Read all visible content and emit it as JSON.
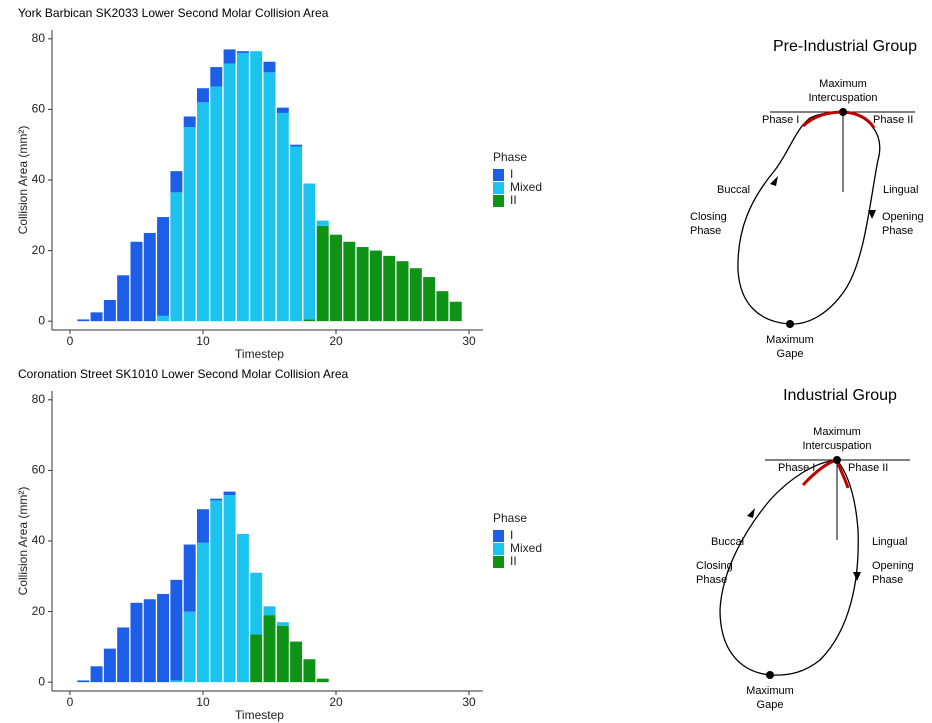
{
  "chart_data": [
    {
      "type": "bar",
      "stacked": true,
      "title": "York Barbican SK2033 Lower Second Molar Collision Area",
      "x_label": "Timestep",
      "y_label": "Collision Area (mm²)",
      "legend_title": "Phase",
      "legend": "right",
      "x": [
        1,
        2,
        3,
        4,
        5,
        6,
        7,
        8,
        9,
        10,
        11,
        12,
        13,
        14,
        15,
        16,
        17,
        18,
        19,
        20,
        21,
        22,
        23,
        24,
        25,
        26,
        27,
        28,
        29
      ],
      "series": [
        {
          "name": "I",
          "color": "#1d5ee8",
          "values": [
            0.5,
            2.5,
            6,
            13,
            22.5,
            25,
            28,
            6,
            3,
            4,
            5.5,
            4,
            0.5,
            0,
            3,
            1.5,
            0.5,
            0,
            0,
            0,
            0,
            0,
            0,
            0,
            0,
            0,
            0,
            0,
            0
          ]
        },
        {
          "name": "Mixed",
          "color": "#1cc3ef",
          "values": [
            0,
            0,
            0,
            0,
            0,
            0,
            1.5,
            36.5,
            55,
            62,
            66.5,
            73,
            76,
            76.5,
            70.5,
            59,
            49.5,
            38.5,
            1.5,
            0,
            0,
            0,
            0,
            0,
            0,
            0,
            0,
            0,
            0
          ]
        },
        {
          "name": "II",
          "color": "#0f9316",
          "values": [
            0,
            0,
            0,
            0,
            0,
            0,
            0,
            0,
            0,
            0,
            0,
            0,
            0,
            0,
            0,
            0,
            0,
            0.5,
            27,
            24.5,
            22.5,
            21,
            20,
            18.5,
            17,
            15,
            12.5,
            8.5,
            5.5
          ]
        }
      ],
      "xlim": [
        -1.35,
        31.05
      ],
      "ylim": [
        -2.5,
        82.5
      ],
      "xticks": [
        0,
        10,
        20,
        30
      ],
      "yticks": [
        0,
        20,
        40,
        60,
        80
      ]
    },
    {
      "type": "bar",
      "stacked": true,
      "title": "Coronation Street SK1010 Lower Second Molar Collision Area",
      "x_label": "Timestep",
      "y_label": "Collision Area (mm²)",
      "legend_title": "Phase",
      "legend": "right",
      "x": [
        1,
        2,
        3,
        4,
        5,
        6,
        7,
        8,
        9,
        10,
        11,
        12,
        13,
        14,
        15,
        16,
        17,
        18,
        19
      ],
      "series": [
        {
          "name": "I",
          "color": "#1d5ee8",
          "values": [
            0.5,
            4.5,
            9.5,
            15.5,
            22.5,
            23.5,
            25,
            28.5,
            19,
            9.5,
            0.5,
            1,
            0,
            0,
            0,
            0,
            0,
            0,
            0
          ]
        },
        {
          "name": "Mixed",
          "color": "#1cc3ef",
          "values": [
            0,
            0,
            0,
            0,
            0,
            0,
            0,
            0.5,
            20,
            39.5,
            51.5,
            53,
            42,
            17.5,
            2.5,
            1,
            0,
            0,
            0
          ]
        },
        {
          "name": "II",
          "color": "#0f9316",
          "values": [
            0,
            0,
            0,
            0,
            0,
            0,
            0,
            0,
            0,
            0,
            0,
            0,
            0,
            13.5,
            19,
            16,
            11.5,
            6.5,
            1
          ]
        }
      ],
      "xlim": [
        -1.35,
        31.05
      ],
      "ylim": [
        -2.5,
        82.5
      ],
      "xticks": [
        0,
        10,
        20,
        30
      ],
      "yticks": [
        0,
        20,
        40,
        60,
        80
      ]
    }
  ],
  "diagrams": [
    {
      "title": "Pre-Industrial Group",
      "top_label": [
        "Maximum",
        "Intercuspation"
      ],
      "left_phase": "Phase I",
      "right_phase": "Phase II",
      "left_side": "Buccal",
      "left_phase_label": [
        "Closing",
        "Phase"
      ],
      "right_side": "Lingual",
      "right_phase_label": [
        "Opening",
        "Phase"
      ],
      "bottom_label": [
        "Maximum",
        "Gape"
      ]
    },
    {
      "title": "Industrial Group",
      "top_label": [
        "Maximum",
        "Intercuspation"
      ],
      "left_phase": "Phase I",
      "right_phase": "Phase II",
      "left_side": "Buccal",
      "left_phase_label": [
        "Closing",
        "Phase"
      ],
      "right_side": "Lingual",
      "right_phase_label": [
        "Opening",
        "Phase"
      ],
      "bottom_label": [
        "Maximum",
        "Gape"
      ]
    }
  ]
}
